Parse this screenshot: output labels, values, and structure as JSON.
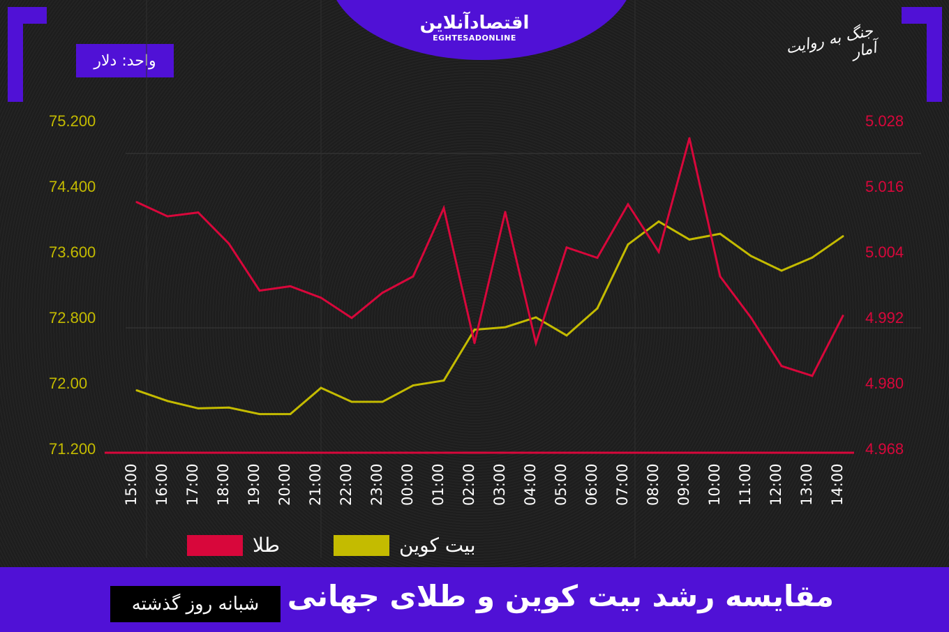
{
  "header": {
    "logo_fa": "اقتصادآنلاین",
    "logo_en": "EGHTESADONLINE",
    "unit_label": "واحد: دلار",
    "signature": "جنگ به روایت آمار"
  },
  "footer": {
    "title": "مقایسه رشد بیت کوین و طلای جهانی",
    "subtitle": "شبانه روز گذشته"
  },
  "colors": {
    "accent": "#5011d6",
    "bitcoin": "#c4bb00",
    "gold": "#d8073b",
    "background": "#1d1d1d"
  },
  "chart_data": {
    "type": "line",
    "title": "مقایسه رشد بیت کوین و طلای جهانی",
    "x": [
      "15:00",
      "16:00",
      "17:00",
      "18:00",
      "19:00",
      "20:00",
      "21:00",
      "22:00",
      "23:00",
      "00:00",
      "01:00",
      "02:00",
      "03:00",
      "04:00",
      "05:00",
      "06:00",
      "07:00",
      "08:00",
      "09:00",
      "10:00",
      "11:00",
      "12:00",
      "13:00",
      "14:00"
    ],
    "left_axis": {
      "ylim": [
        71.2,
        75.2
      ],
      "ticks": [
        75.2,
        74.4,
        73.6,
        72.8,
        72.0,
        71.2
      ],
      "tick_labels": [
        "75.200",
        "74.400",
        "73.600",
        "72.800",
        "72.00",
        "71.200"
      ]
    },
    "right_axis": {
      "ylim": [
        4.968,
        5.028
      ],
      "ticks": [
        5.028,
        5.016,
        5.004,
        4.992,
        4.98,
        4.968
      ],
      "tick_labels": [
        "5.028",
        "5.016",
        "5.004",
        "4.992",
        "4.980",
        "4.968"
      ]
    },
    "series": [
      {
        "name": "بیت کوین",
        "axis": "left",
        "color": "#c4bb00",
        "values": [
          71.91,
          71.78,
          71.69,
          71.7,
          71.62,
          71.62,
          71.94,
          71.77,
          71.77,
          71.97,
          72.03,
          72.65,
          72.68,
          72.8,
          72.58,
          72.91,
          73.69,
          73.97,
          73.75,
          73.82,
          73.55,
          73.37,
          73.53,
          73.79
        ]
      },
      {
        "name": "طلا",
        "axis": "right",
        "color": "#d8073b",
        "values": [
          5.0131,
          5.0105,
          5.0112,
          5.0055,
          4.9969,
          4.9977,
          4.9956,
          4.9919,
          4.9965,
          4.9995,
          5.012,
          4.9873,
          5.0113,
          4.9873,
          5.0048,
          5.0029,
          5.0127,
          5.004,
          5.0248,
          4.9995,
          4.992,
          4.9831,
          4.9813,
          4.9923
        ]
      }
    ],
    "grid": true,
    "legend": "bottom"
  }
}
